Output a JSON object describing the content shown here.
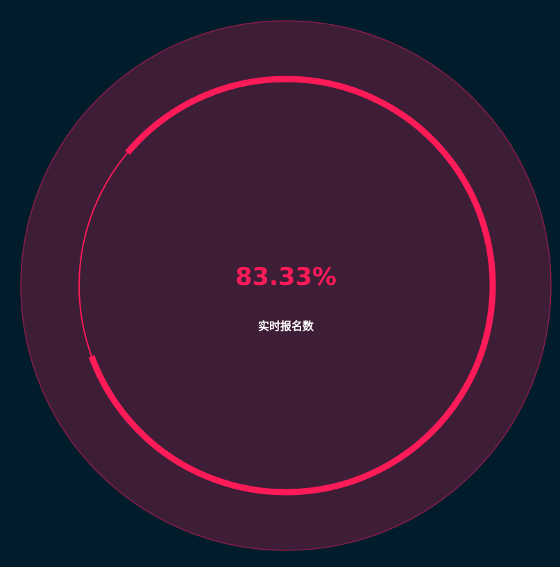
{
  "chart_data": {
    "type": "gauge",
    "value_percent": 83.33,
    "value_text": "83.33%",
    "label": "实时报名数",
    "colors": {
      "background": "#011d2c",
      "disc_fill": "#3e1e37",
      "disc_stroke": "#8b1c4a",
      "progress": "#ff1a58",
      "remainder": "#ff1a58",
      "value_text": "#ff1a58",
      "label_text": "#ffffff"
    }
  }
}
